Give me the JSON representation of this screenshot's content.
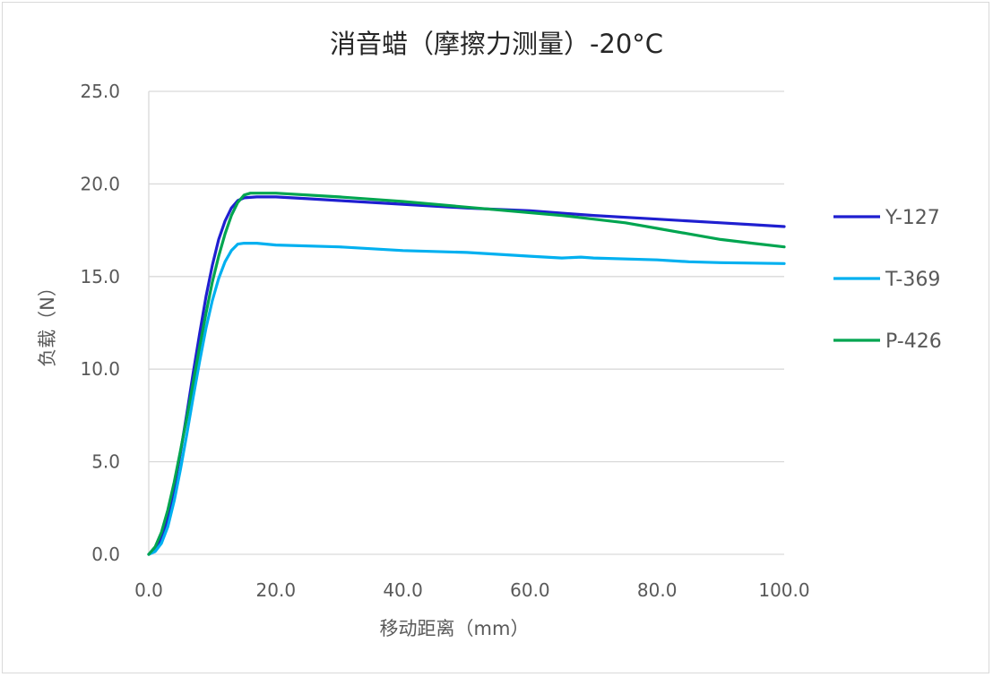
{
  "chart_data": {
    "type": "line",
    "title": "消音蜡（摩擦力测量）-20°C",
    "xlabel": "移动距离（mm）",
    "ylabel": "负载（N）",
    "xlim": [
      0,
      100
    ],
    "ylim": [
      0,
      25
    ],
    "x_ticks": [
      "0.0",
      "20.0",
      "40.0",
      "60.0",
      "80.0",
      "100.0"
    ],
    "y_ticks": [
      "0.0",
      "5.0",
      "10.0",
      "15.0",
      "20.0",
      "25.0"
    ],
    "grid": "horizontal",
    "legend_position": "right",
    "series": [
      {
        "name": "Y-127",
        "color": "#1f1fd0",
        "points": [
          [
            0,
            0
          ],
          [
            1,
            0.3
          ],
          [
            2,
            0.9
          ],
          [
            3,
            2.0
          ],
          [
            4,
            3.6
          ],
          [
            5,
            5.5
          ],
          [
            6,
            7.6
          ],
          [
            7,
            9.8
          ],
          [
            8,
            11.9
          ],
          [
            9,
            13.9
          ],
          [
            10,
            15.6
          ],
          [
            11,
            17.0
          ],
          [
            12,
            18.0
          ],
          [
            13,
            18.7
          ],
          [
            14,
            19.1
          ],
          [
            15,
            19.25
          ],
          [
            17,
            19.3
          ],
          [
            20,
            19.3
          ],
          [
            25,
            19.2
          ],
          [
            30,
            19.1
          ],
          [
            40,
            18.9
          ],
          [
            50,
            18.7
          ],
          [
            60,
            18.55
          ],
          [
            70,
            18.3
          ],
          [
            80,
            18.1
          ],
          [
            90,
            17.9
          ],
          [
            95,
            17.8
          ],
          [
            100,
            17.7
          ]
        ]
      },
      {
        "name": "T-369",
        "color": "#00b0f0",
        "points": [
          [
            0,
            0
          ],
          [
            1,
            0.15
          ],
          [
            2,
            0.6
          ],
          [
            3,
            1.5
          ],
          [
            4,
            2.9
          ],
          [
            5,
            4.6
          ],
          [
            6,
            6.5
          ],
          [
            7,
            8.5
          ],
          [
            8,
            10.4
          ],
          [
            9,
            12.2
          ],
          [
            10,
            13.7
          ],
          [
            11,
            14.9
          ],
          [
            12,
            15.8
          ],
          [
            13,
            16.4
          ],
          [
            14,
            16.75
          ],
          [
            15,
            16.8
          ],
          [
            17,
            16.8
          ],
          [
            20,
            16.7
          ],
          [
            30,
            16.6
          ],
          [
            40,
            16.4
          ],
          [
            50,
            16.3
          ],
          [
            55,
            16.2
          ],
          [
            60,
            16.1
          ],
          [
            65,
            16.0
          ],
          [
            68,
            16.05
          ],
          [
            70,
            16.0
          ],
          [
            80,
            15.9
          ],
          [
            85,
            15.8
          ],
          [
            90,
            15.75
          ],
          [
            100,
            15.7
          ]
        ]
      },
      {
        "name": "P-426",
        "color": "#00a550",
        "points": [
          [
            0,
            0
          ],
          [
            1,
            0.4
          ],
          [
            2,
            1.2
          ],
          [
            3,
            2.4
          ],
          [
            4,
            3.9
          ],
          [
            5,
            5.6
          ],
          [
            6,
            7.4
          ],
          [
            7,
            9.3
          ],
          [
            8,
            11.2
          ],
          [
            9,
            13.0
          ],
          [
            10,
            14.7
          ],
          [
            11,
            16.1
          ],
          [
            12,
            17.3
          ],
          [
            13,
            18.3
          ],
          [
            14,
            19.0
          ],
          [
            15,
            19.4
          ],
          [
            16,
            19.5
          ],
          [
            20,
            19.5
          ],
          [
            30,
            19.3
          ],
          [
            40,
            19.05
          ],
          [
            50,
            18.75
          ],
          [
            60,
            18.45
          ],
          [
            65,
            18.3
          ],
          [
            70,
            18.1
          ],
          [
            75,
            17.9
          ],
          [
            80,
            17.6
          ],
          [
            85,
            17.3
          ],
          [
            90,
            17.0
          ],
          [
            95,
            16.8
          ],
          [
            100,
            16.6
          ]
        ]
      }
    ]
  }
}
